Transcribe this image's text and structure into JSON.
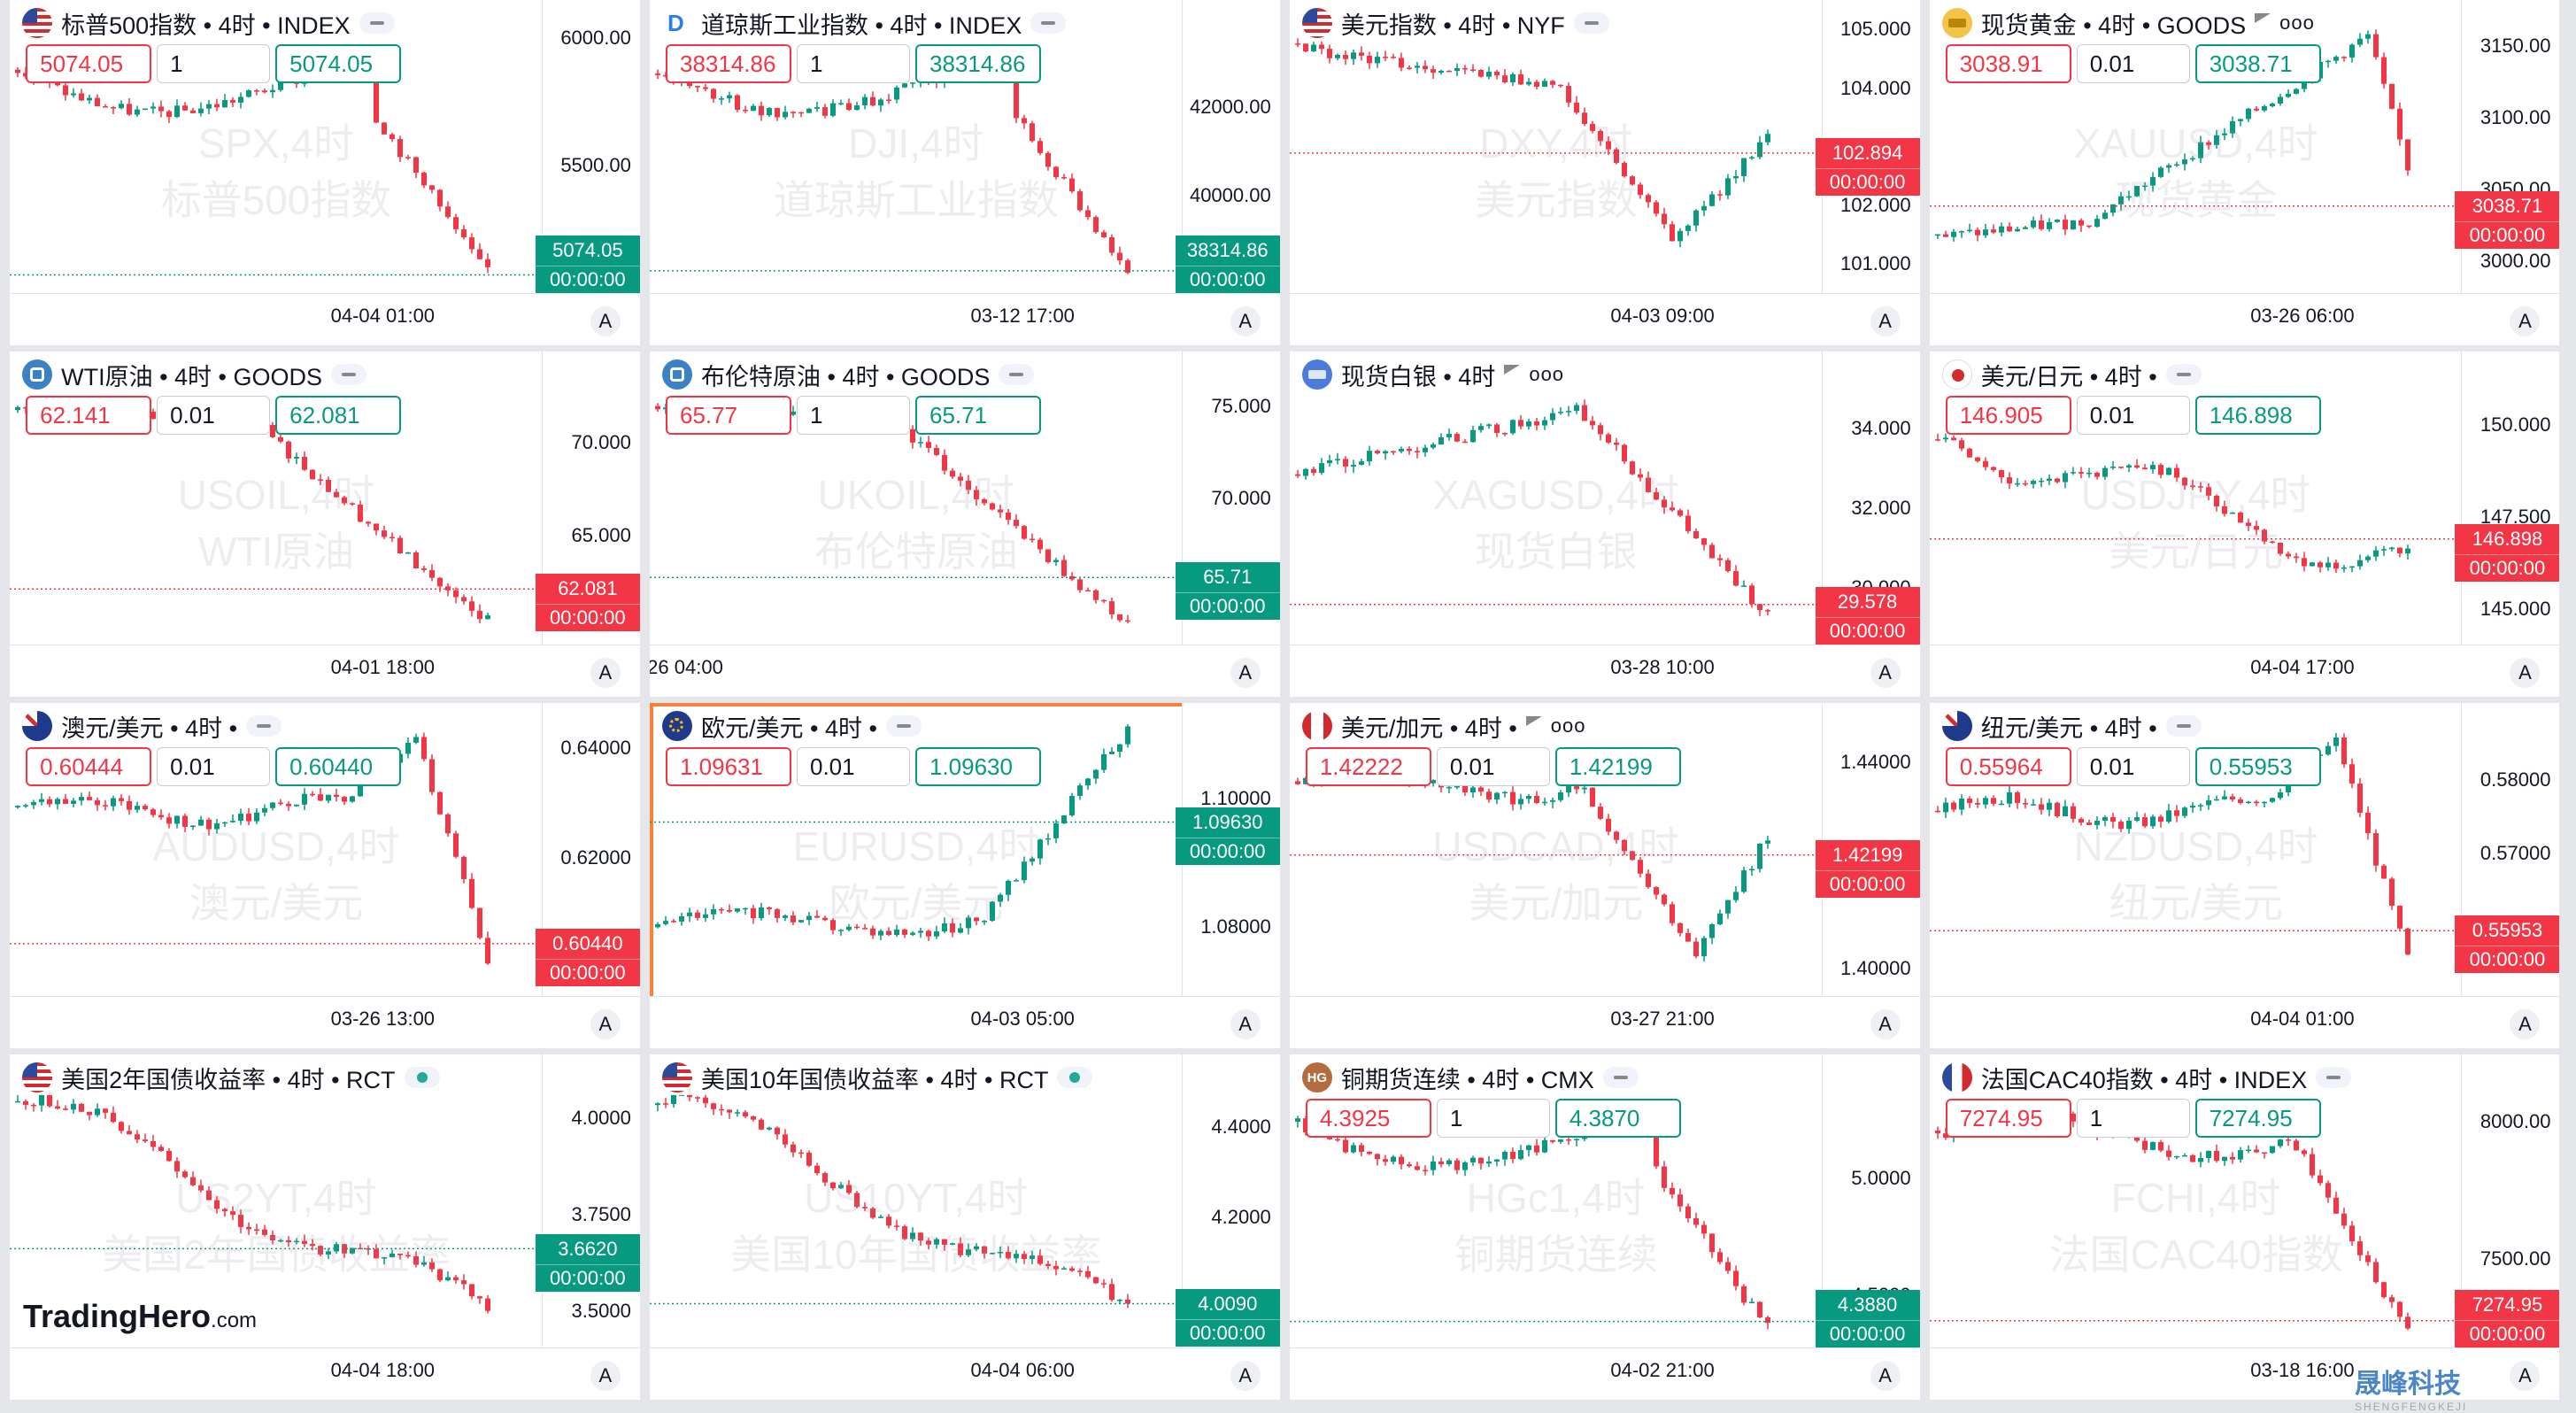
{
  "panels": [
    {
      "title": "标普500指数 • 4时 • INDEX",
      "icon": "us-flag-icon",
      "flag": "us",
      "sell": "5074.05",
      "qty": "1",
      "buy": "5074.05",
      "wm1": "SPX,4时",
      "wm2": "标普500指数",
      "ticks": [
        "6000.00",
        "5500.00"
      ],
      "tickv": [
        6000,
        5500
      ],
      "range": [
        5070,
        6080
      ],
      "price": "5074.05",
      "priceColor": "green",
      "priceTime": "00:00:00",
      "time": "04-04 01:00",
      "trend": "sp",
      "extra": "pill"
    },
    {
      "title": "道琼斯工业指数 • 4时 • INDEX",
      "icon": "dj-logo-icon",
      "flag": "dj",
      "sell": "38314.86",
      "qty": "1",
      "buy": "38314.86",
      "wm1": "DJI,4时",
      "wm2": "道琼斯工业指数",
      "ticks": [
        "42000.00",
        "40000.00"
      ],
      "tickv": [
        42000,
        40000
      ],
      "range": [
        38200,
        44000
      ],
      "price": "38314.86",
      "priceColor": "green",
      "priceTime": "00:00:00",
      "time": "03-12 17:00",
      "trend": "sp",
      "extra": "pill"
    },
    {
      "title": "美元指数 • 4时 • NYF",
      "icon": "us-flag-icon",
      "flag": "us",
      "sell": "",
      "qty": "",
      "buy": "",
      "wm1": "DXY,4时",
      "wm2": "美元指数",
      "ticks": [
        "105.000",
        "104.000",
        "102.000",
        "101.000"
      ],
      "tickv": [
        105,
        104,
        102,
        101
      ],
      "range": [
        100.8,
        105.2
      ],
      "price": "102.894",
      "priceColor": "red",
      "priceTime": "00:00:00",
      "time": "04-03 09:00",
      "trend": "dxy",
      "extra": "pill"
    },
    {
      "title": "现货黄金 • 4时 • GOODS",
      "icon": "gold-bar-icon",
      "flag": "gold",
      "sell": "3038.91",
      "qty": "0.01",
      "buy": "3038.71",
      "wm1": "XAUUSD,4时",
      "wm2": "现货黄金",
      "ticks": [
        "3150.00",
        "3100.00",
        "3050.00",
        "3000.00"
      ],
      "tickv": [
        3150,
        3100,
        3050,
        3000
      ],
      "range": [
        2990,
        3170
      ],
      "price": "3038.71",
      "priceColor": "red",
      "priceTime": "00:00:00",
      "time": "03-26 06:00",
      "trend": "gold",
      "extra": "flagdots"
    },
    {
      "title": "WTI原油 • 4时 • GOODS",
      "icon": "oil-icon",
      "flag": "oil",
      "sell": "62.141",
      "qty": "0.01",
      "buy": "62.081",
      "wm1": "USOIL,4时",
      "wm2": "WTI原油",
      "ticks": [
        "70.000",
        "65.000"
      ],
      "tickv": [
        70,
        65
      ],
      "range": [
        60,
        74
      ],
      "price": "62.081",
      "priceColor": "red",
      "priceTime": "00:00:00",
      "time": "04-01 18:00",
      "trend": "oil",
      "extra": "pill"
    },
    {
      "title": "布伦特原油 • 4时 • GOODS",
      "icon": "oil-icon",
      "flag": "oil",
      "sell": "65.77",
      "qty": "1",
      "buy": "65.71",
      "wm1": "UKOIL,4时",
      "wm2": "布伦特原油",
      "ticks": [
        "75.000",
        "70.000"
      ],
      "tickv": [
        75,
        70
      ],
      "range": [
        63,
        77
      ],
      "price": "65.71",
      "priceColor": "green",
      "priceTime": "00:00:00",
      "time": "26 04:00",
      "trend": "oil",
      "extra": "pill"
    },
    {
      "title": "现货白银 • 4时",
      "icon": "silver-bar-icon",
      "flag": "silver",
      "sell": "",
      "qty": "",
      "buy": "",
      "wm1": "XAGUSD,4时",
      "wm2": "现货白银",
      "ticks": [
        "34.000",
        "32.000",
        "30.000"
      ],
      "tickv": [
        34,
        32,
        30
      ],
      "range": [
        29,
        35.5
      ],
      "price": "29.578",
      "priceColor": "red",
      "priceTime": "00:00:00",
      "time": "03-28 10:00",
      "trend": "silver",
      "extra": "flagdots"
    },
    {
      "title": "美元/日元 • 4时 •",
      "icon": "usd-jpy-flag-icon",
      "flag": "usjp",
      "sell": "146.905",
      "qty": "0.01",
      "buy": "146.898",
      "wm1": "USDJPY,4时",
      "wm2": "美元/日元",
      "ticks": [
        "150.000",
        "147.500",
        "145.000"
      ],
      "tickv": [
        150,
        147.5,
        145
      ],
      "range": [
        144.5,
        151.5
      ],
      "price": "146.898",
      "priceColor": "red",
      "priceTime": "00:00:00",
      "time": "04-04 17:00",
      "trend": "jpy",
      "extra": "pill"
    },
    {
      "title": "澳元/美元 • 4时 •",
      "icon": "aud-usd-flag-icon",
      "flag": "au",
      "sell": "0.60444",
      "qty": "0.01",
      "buy": "0.60440",
      "wm1": "AUDUSD,4时",
      "wm2": "澳元/美元",
      "ticks": [
        "0.64000",
        "0.62000"
      ],
      "tickv": [
        0.64,
        0.62
      ],
      "range": [
        0.598,
        0.645
      ],
      "price": "0.60440",
      "priceColor": "red",
      "priceTime": "00:00:00",
      "time": "03-26 13:00",
      "trend": "aud",
      "extra": "pill"
    },
    {
      "title": "欧元/美元 • 4时 •",
      "icon": "eur-usd-flag-icon",
      "flag": "eu",
      "sell": "1.09631",
      "qty": "0.01",
      "buy": "1.09630",
      "wm1": "EURUSD,4时",
      "wm2": "欧元/美元",
      "ticks": [
        "1.10000",
        "1.08000"
      ],
      "tickv": [
        1.1,
        1.08
      ],
      "range": [
        1.072,
        1.112
      ],
      "price": "1.09630",
      "priceColor": "green",
      "priceTime": "00:00:00",
      "time": "04-03 05:00",
      "trend": "eur",
      "extra": "pill",
      "active": true
    },
    {
      "title": "美元/加元 • 4时 •",
      "icon": "usd-cad-flag-icon",
      "flag": "usca",
      "sell": "1.42222",
      "qty": "0.01",
      "buy": "1.42199",
      "wm1": "USDCAD,4时",
      "wm2": "美元/加元",
      "ticks": [
        "1.44000",
        "1.40000"
      ],
      "tickv": [
        1.44,
        1.4
      ],
      "range": [
        1.398,
        1.448
      ],
      "price": "1.42199",
      "priceColor": "red",
      "priceTime": "00:00:00",
      "time": "03-27 21:00",
      "trend": "cad",
      "extra": "flagdots"
    },
    {
      "title": "纽元/美元 • 4时 •",
      "icon": "nzd-usd-flag-icon",
      "flag": "nz",
      "sell": "0.55964",
      "qty": "0.01",
      "buy": "0.55953",
      "wm1": "NZDUSD,4时",
      "wm2": "纽元/美元",
      "ticks": [
        "0.58000",
        "0.57000"
      ],
      "tickv": [
        0.58,
        0.57
      ],
      "range": [
        0.553,
        0.588
      ],
      "price": "0.55953",
      "priceColor": "red",
      "priceTime": "00:00:00",
      "time": "04-04 01:00",
      "trend": "aud",
      "extra": "pill"
    },
    {
      "title": "美国2年国债收益率 • 4时 • RCT",
      "icon": "us-flag-icon",
      "flag": "us",
      "sell": "",
      "qty": "",
      "buy": "",
      "wm1": "US2YT,4时",
      "wm2": "美国2年国债收益率",
      "ticks": [
        "4.0000",
        "3.7500",
        "3.5000"
      ],
      "tickv": [
        4.0,
        3.75,
        3.5
      ],
      "range": [
        3.45,
        4.12
      ],
      "price": "3.6620",
      "priceColor": "green",
      "priceTime": "00:00:00",
      "time": "04-04 18:00",
      "trend": "bond",
      "extra": "live"
    },
    {
      "title": "美国10年国债收益率 • 4时 • RCT",
      "icon": "us-flag-icon",
      "flag": "us",
      "sell": "",
      "qty": "",
      "buy": "",
      "wm1": "US10YT,4时",
      "wm2": "美国10年国债收益率",
      "ticks": [
        "4.4000",
        "4.2000"
      ],
      "tickv": [
        4.4,
        4.2
      ],
      "range": [
        3.95,
        4.52
      ],
      "price": "4.0090",
      "priceColor": "green",
      "priceTime": "00:00:00",
      "time": "04-04 06:00",
      "trend": "bond",
      "extra": "live"
    },
    {
      "title": "铜期货连续 • 4时 • CMX",
      "icon": "copper-hg-icon",
      "flag": "hg",
      "sell": "4.3925",
      "qty": "1",
      "buy": "4.3870",
      "wm1": "HGc1,4时",
      "wm2": "铜期货连续",
      "ticks": [
        "5.0000",
        "4.5000"
      ],
      "tickv": [
        5.0,
        4.5
      ],
      "range": [
        4.35,
        5.45
      ],
      "price": "4.3880",
      "priceColor": "green",
      "priceTime": "00:00:00",
      "time": "04-02 21:00",
      "trend": "sp",
      "extra": "pill"
    },
    {
      "title": "法国CAC40指数 • 4时 • INDEX",
      "icon": "fr-flag-icon",
      "flag": "fr",
      "sell": "7274.95",
      "qty": "1",
      "buy": "7274.95",
      "wm1": "FCHI,4时",
      "wm2": "法国CAC40指数",
      "ticks": [
        "8000.00",
        "7500.00"
      ],
      "tickv": [
        8000,
        7500
      ],
      "range": [
        7240,
        8180
      ],
      "price": "7274.95",
      "priceColor": "red",
      "priceTime": "00:00:00",
      "time": "03-18 16:00",
      "trend": "cac",
      "extra": "pill"
    }
  ],
  "axis_button": "A",
  "brand": {
    "main": "TradingHero",
    "suffix": ".com"
  },
  "corner_logo": {
    "main": "晟峰科技",
    "sub": "SHENGFENGKEJI"
  },
  "colors": {
    "up": "#089981",
    "down": "#f23645",
    "active_border": "#f7823b"
  }
}
